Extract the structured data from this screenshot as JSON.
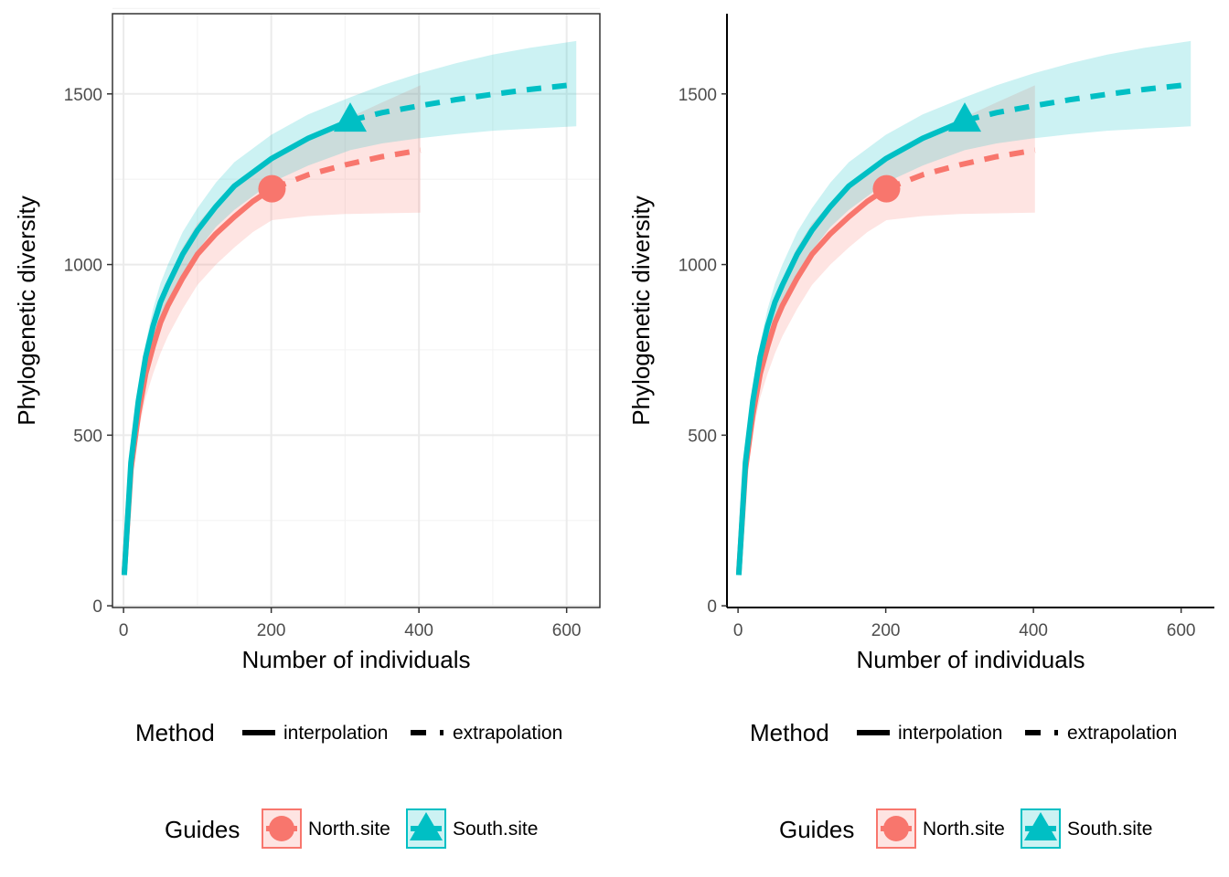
{
  "colors": {
    "north": "#F8766D",
    "south": "#00BFC4",
    "grid_major": "#EBEBEB",
    "grid_minor": "#F4F4F4",
    "axis": "#000000"
  },
  "legend": {
    "method_title": "Method",
    "method_items": [
      "interpolation",
      "extrapolation"
    ],
    "guides_title": "Guides",
    "guides_items": [
      "North.site",
      "South.site"
    ]
  },
  "chart_data": [
    {
      "type": "line",
      "theme": "bordered panel with grid",
      "grid": true,
      "xlabel": "Number of individuals",
      "ylabel": "Phylogenetic diversity",
      "xlim": [
        -15,
        645
      ],
      "ylim": [
        -5,
        1735
      ],
      "xticks": [
        0,
        200,
        400,
        600
      ],
      "yticks": [
        0,
        500,
        1000,
        1500
      ],
      "legend_position": "bottom",
      "series": [
        {
          "name": "North.site",
          "color": "#F8766D",
          "marker": "circle",
          "observed": {
            "x": 201,
            "y": 1222
          },
          "interpolation": {
            "x": [
              1,
              10,
              20,
              30,
              40,
              50,
              60,
              80,
              100,
              125,
              150,
              175,
              201
            ],
            "y": [
              95,
              400,
              560,
              680,
              760,
              830,
              880,
              960,
              1030,
              1090,
              1140,
              1185,
              1222
            ]
          },
          "extrapolation": {
            "x": [
              201,
              250,
              300,
              350,
              402
            ],
            "y": [
              1222,
              1263,
              1292,
              1316,
              1335
            ]
          },
          "band": {
            "x": [
              1,
              10,
              20,
              30,
              40,
              50,
              60,
              80,
              100,
              125,
              150,
              175,
              201,
              250,
              300,
              350,
              402
            ],
            "lower": [
              90,
              370,
              510,
              610,
              680,
              740,
              790,
              870,
              940,
              1000,
              1050,
              1095,
              1130,
              1142,
              1148,
              1150,
              1152
            ],
            "upper": [
              110,
              440,
              610,
              740,
              830,
              900,
              955,
              1050,
              1120,
              1180,
              1230,
              1270,
              1315,
              1375,
              1425,
              1475,
              1525
            ]
          }
        },
        {
          "name": "South.site",
          "color": "#00BFC4",
          "marker": "triangle",
          "observed": {
            "x": 307,
            "y": 1422
          },
          "interpolation": {
            "x": [
              1,
              10,
              20,
              30,
              40,
              50,
              60,
              80,
              100,
              125,
              150,
              200,
              250,
              307
            ],
            "y": [
              90,
              420,
              600,
              730,
              820,
              890,
              940,
              1030,
              1100,
              1170,
              1230,
              1310,
              1370,
              1422
            ]
          },
          "extrapolation": {
            "x": [
              307,
              350,
              400,
              450,
              500,
              550,
              613
            ],
            "y": [
              1422,
              1445,
              1465,
              1483,
              1499,
              1513,
              1528
            ]
          },
          "band": {
            "x": [
              1,
              10,
              20,
              30,
              40,
              50,
              60,
              80,
              100,
              125,
              150,
              200,
              250,
              307,
              350,
              400,
              450,
              500,
              550,
              613
            ],
            "lower": [
              85,
              400,
              570,
              690,
              775,
              840,
              890,
              975,
              1040,
              1110,
              1160,
              1240,
              1290,
              1335,
              1355,
              1370,
              1382,
              1392,
              1398,
              1405
            ],
            "upper": [
              100,
              440,
              630,
              770,
              870,
              945,
              1000,
              1095,
              1165,
              1240,
              1300,
              1380,
              1440,
              1490,
              1525,
              1560,
              1590,
              1615,
              1635,
              1655
            ]
          }
        }
      ]
    },
    {
      "type": "line",
      "theme": "classic axes without grid",
      "grid": false,
      "xlabel": "Number of individuals",
      "ylabel": "Phylogenetic diversity",
      "xlim": [
        -15,
        645
      ],
      "ylim": [
        -5,
        1735
      ],
      "xticks": [
        0,
        200,
        400,
        600
      ],
      "yticks": [
        0,
        500,
        1000,
        1500
      ],
      "legend_position": "bottom",
      "series": [
        {
          "name": "North.site",
          "color": "#F8766D",
          "marker": "circle",
          "observed": {
            "x": 201,
            "y": 1222
          },
          "interpolation": {
            "x": [
              1,
              10,
              20,
              30,
              40,
              50,
              60,
              80,
              100,
              125,
              150,
              175,
              201
            ],
            "y": [
              95,
              400,
              560,
              680,
              760,
              830,
              880,
              960,
              1030,
              1090,
              1140,
              1185,
              1222
            ]
          },
          "extrapolation": {
            "x": [
              201,
              250,
              300,
              350,
              402
            ],
            "y": [
              1222,
              1263,
              1292,
              1316,
              1335
            ]
          },
          "band": {
            "x": [
              1,
              10,
              20,
              30,
              40,
              50,
              60,
              80,
              100,
              125,
              150,
              175,
              201,
              250,
              300,
              350,
              402
            ],
            "lower": [
              90,
              370,
              510,
              610,
              680,
              740,
              790,
              870,
              940,
              1000,
              1050,
              1095,
              1130,
              1142,
              1148,
              1150,
              1152
            ],
            "upper": [
              110,
              440,
              610,
              740,
              830,
              900,
              955,
              1050,
              1120,
              1180,
              1230,
              1270,
              1315,
              1375,
              1425,
              1475,
              1525
            ]
          }
        },
        {
          "name": "South.site",
          "color": "#00BFC4",
          "marker": "triangle",
          "observed": {
            "x": 307,
            "y": 1422
          },
          "interpolation": {
            "x": [
              1,
              10,
              20,
              30,
              40,
              50,
              60,
              80,
              100,
              125,
              150,
              200,
              250,
              307
            ],
            "y": [
              90,
              420,
              600,
              730,
              820,
              890,
              940,
              1030,
              1100,
              1170,
              1230,
              1310,
              1370,
              1422
            ]
          },
          "extrapolation": {
            "x": [
              307,
              350,
              400,
              450,
              500,
              550,
              613
            ],
            "y": [
              1422,
              1445,
              1465,
              1483,
              1499,
              1513,
              1528
            ]
          },
          "band": {
            "x": [
              1,
              10,
              20,
              30,
              40,
              50,
              60,
              80,
              100,
              125,
              150,
              200,
              250,
              307,
              350,
              400,
              450,
              500,
              550,
              613
            ],
            "lower": [
              85,
              400,
              570,
              690,
              775,
              840,
              890,
              975,
              1040,
              1110,
              1160,
              1240,
              1290,
              1335,
              1355,
              1370,
              1382,
              1392,
              1398,
              1405
            ],
            "upper": [
              100,
              440,
              630,
              770,
              870,
              945,
              1000,
              1095,
              1165,
              1240,
              1300,
              1380,
              1440,
              1490,
              1525,
              1560,
              1590,
              1615,
              1635,
              1655
            ]
          }
        }
      ]
    }
  ]
}
